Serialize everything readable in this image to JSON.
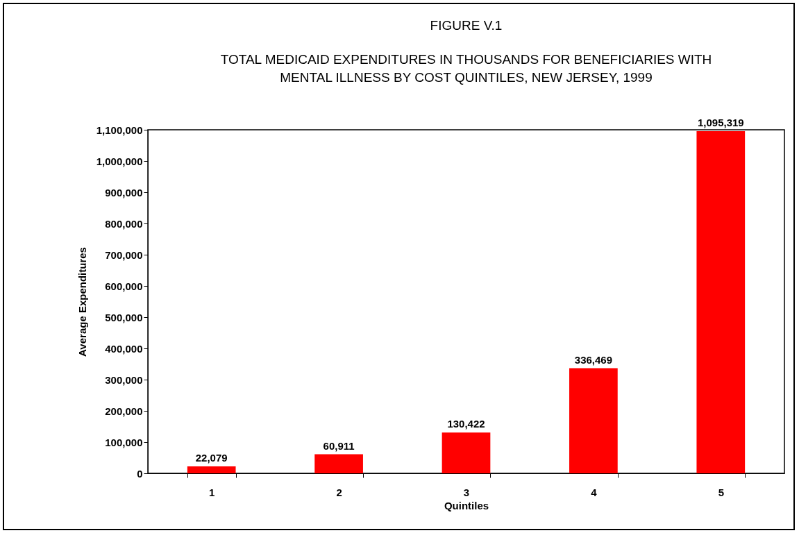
{
  "chart_data": {
    "type": "bar",
    "title": "FIGURE V.1",
    "subtitle": "TOTAL MEDICAID EXPENDITURES IN THOUSANDS FOR BENEFICIARIES WITH\nMENTAL ILLNESS BY COST QUINTILES, NEW JERSEY, 1999",
    "xlabel": "Quintiles",
    "ylabel": "Average Expenditures",
    "categories": [
      "1",
      "2",
      "3",
      "4",
      "5"
    ],
    "values": [
      22079,
      60911,
      130422,
      336469,
      1095319
    ],
    "color": "#ff0000",
    "value_labels": [
      "22,079",
      "60,911",
      "130,422",
      "336,469",
      "1,095,319"
    ],
    "ylim": [
      0,
      1100000
    ],
    "yticks": [
      0,
      {
        "value": 100000,
        "label": "100,000"
      },
      {
        "value": 200000,
        "label": "200,000"
      },
      {
        "value": 300000,
        "label": "300,000"
      },
      {
        "value": 400000,
        "label": "400,000"
      },
      {
        "value": 500000,
        "label": "500,000"
      },
      {
        "value": 600000,
        "label": "600,000"
      },
      {
        "value": 700000,
        "label": "700,000"
      },
      {
        "value": 800000,
        "label": "800,000"
      },
      {
        "value": 900000,
        "label": "900,000"
      },
      {
        "value": 1000000,
        "label": "1,000,000"
      },
      {
        "value": 1100000,
        "label": "1,100,000"
      }
    ],
    "grid": false
  }
}
